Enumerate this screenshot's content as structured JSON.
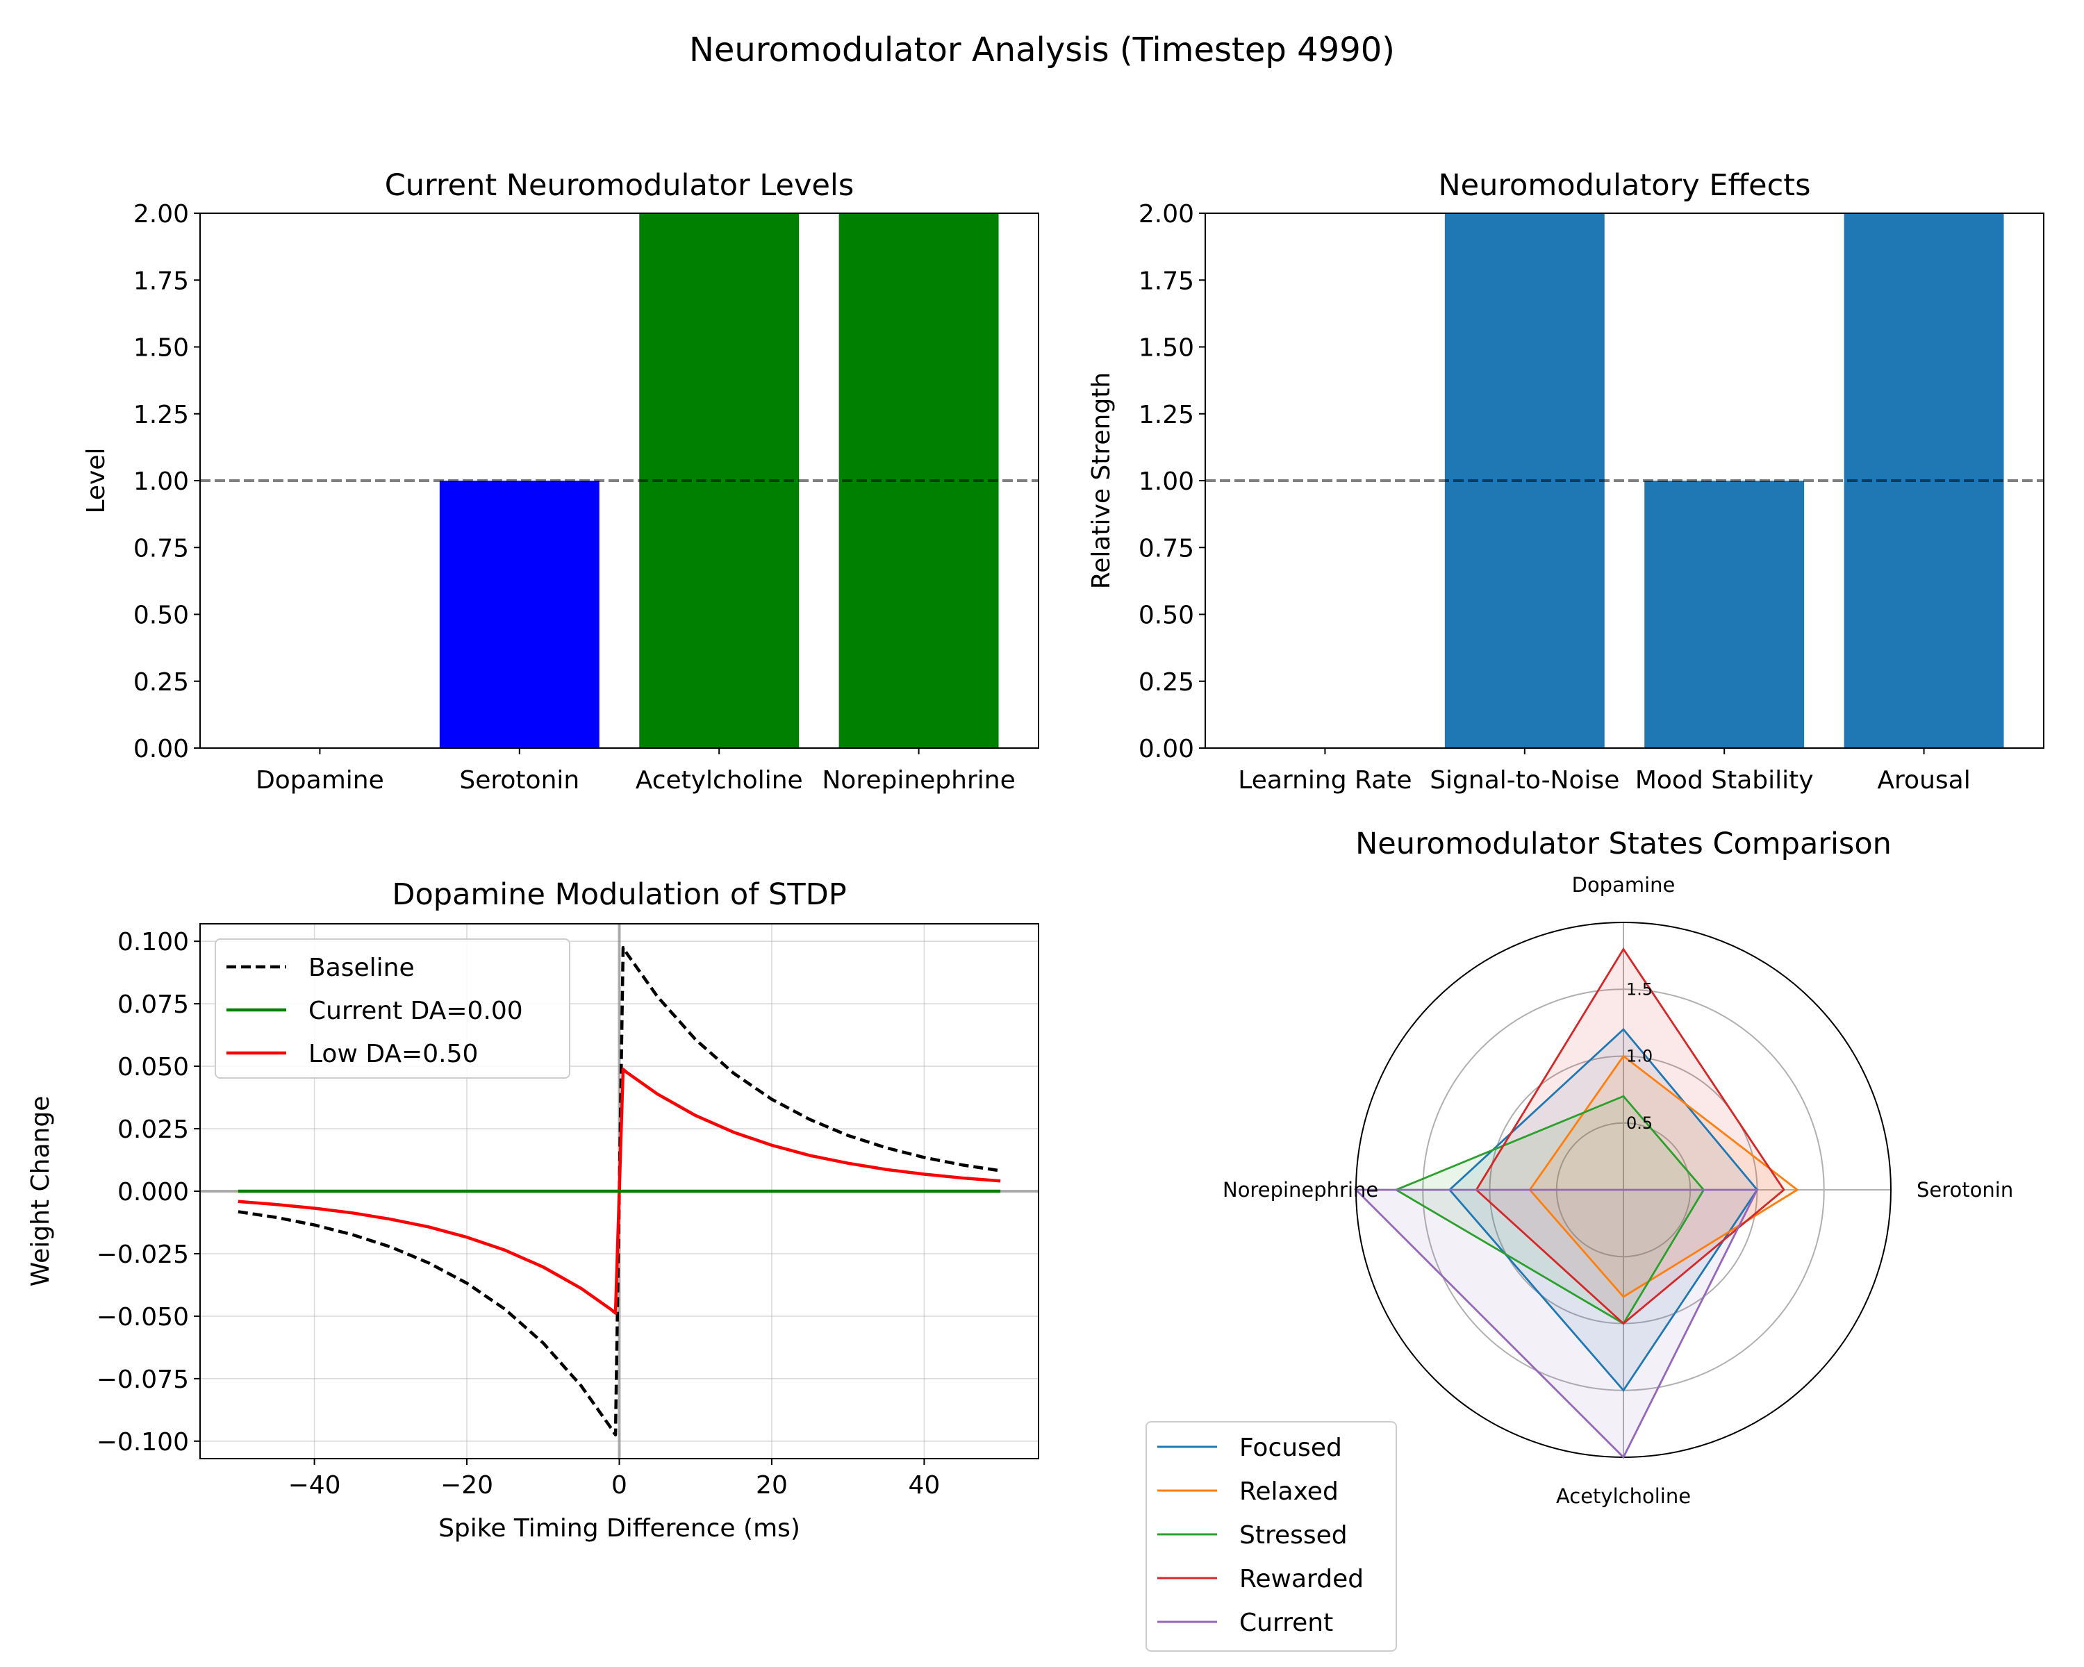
{
  "figure": {
    "suptitle": "Neuromodulator Analysis (Timestep 4990)"
  },
  "chart_data": [
    {
      "id": "levels",
      "type": "bar",
      "title": "Current Neuromodulator Levels",
      "xlabel": "",
      "ylabel": "Level",
      "categories": [
        "Dopamine",
        "Serotonin",
        "Acetylcholine",
        "Norepinephrine"
      ],
      "values": [
        0.0,
        1.0,
        2.0,
        2.0
      ],
      "bar_colors": [
        "#ff0000",
        "#0000ff",
        "#008000",
        "#008000"
      ],
      "ylim": [
        0,
        2
      ],
      "yticks": [
        "0.00",
        "0.25",
        "0.50",
        "0.75",
        "1.00",
        "1.25",
        "1.50",
        "1.75",
        "2.00"
      ],
      "reference_line": {
        "y": 1.0,
        "color": "#7f7f7f",
        "style": "dashed"
      },
      "grid": false
    },
    {
      "id": "effects",
      "type": "bar",
      "title": "Neuromodulatory Effects",
      "xlabel": "",
      "ylabel": "Relative Strength",
      "categories": [
        "Learning Rate",
        "Signal-to-Noise",
        "Mood Stability",
        "Arousal"
      ],
      "values": [
        0.0,
        2.0,
        1.0,
        2.0
      ],
      "bar_colors": [
        "#1f77b4",
        "#1f77b4",
        "#1f77b4",
        "#1f77b4"
      ],
      "ylim": [
        0,
        2
      ],
      "yticks": [
        "0.00",
        "0.25",
        "0.50",
        "0.75",
        "1.00",
        "1.25",
        "1.50",
        "1.75",
        "2.00"
      ],
      "reference_line": {
        "y": 1.0,
        "color": "#7f7f7f",
        "style": "dashed"
      },
      "grid": false
    },
    {
      "id": "stdp",
      "type": "line",
      "title": "Dopamine Modulation of STDP",
      "xlabel": "Spike Timing Difference (ms)",
      "ylabel": "Weight Change",
      "xlim": [
        -55,
        55
      ],
      "ylim": [
        -0.107,
        0.107
      ],
      "xticks": [
        -40,
        -20,
        0,
        20,
        40
      ],
      "xtick_labels": [
        "−40",
        "−20",
        "0",
        "20",
        "40"
      ],
      "yticks": [
        -0.1,
        -0.075,
        -0.05,
        -0.025,
        0,
        0.025,
        0.05,
        0.075,
        0.1
      ],
      "ytick_labels": [
        "−0.100",
        "−0.075",
        "−0.050",
        "−0.025",
        "0.000",
        "0.025",
        "0.050",
        "0.075",
        "0.100"
      ],
      "grid": true,
      "legend_position": "upper-left",
      "series": [
        {
          "name": "Baseline",
          "color": "#000000",
          "style": "dashed",
          "x": [
            -50,
            -45,
            -40,
            -35,
            -30,
            -25,
            -20,
            -15,
            -10,
            -5,
            -1,
            -0.5,
            0.5,
            1,
            5,
            10,
            15,
            20,
            25,
            30,
            35,
            40,
            45,
            50
          ],
          "y": [
            -0.0082,
            -0.0105,
            -0.0135,
            -0.0174,
            -0.0223,
            -0.0287,
            -0.0368,
            -0.0472,
            -0.0607,
            -0.0779,
            -0.0951,
            -0.0975,
            0.0975,
            0.0951,
            0.0779,
            0.0607,
            0.0472,
            0.0368,
            0.0287,
            0.0223,
            0.0174,
            0.0135,
            0.0105,
            0.0082
          ]
        },
        {
          "name": "Current DA=0.00",
          "color": "#008000",
          "style": "solid",
          "x": [
            -50,
            50
          ],
          "y": [
            0,
            0
          ]
        },
        {
          "name": "Low DA=0.50",
          "color": "#ff0000",
          "style": "solid",
          "x": [
            -50,
            -45,
            -40,
            -35,
            -30,
            -25,
            -20,
            -15,
            -10,
            -5,
            -1,
            -0.5,
            0.5,
            1,
            5,
            10,
            15,
            20,
            25,
            30,
            35,
            40,
            45,
            50
          ],
          "y": [
            -0.0041,
            -0.0053,
            -0.0068,
            -0.0087,
            -0.0112,
            -0.0143,
            -0.0184,
            -0.0236,
            -0.0303,
            -0.0389,
            -0.0475,
            -0.0488,
            0.0488,
            0.0475,
            0.0389,
            0.0303,
            0.0236,
            0.0184,
            0.0143,
            0.0112,
            0.0087,
            0.0068,
            0.0053,
            0.0041
          ]
        }
      ]
    },
    {
      "id": "radar",
      "type": "radar",
      "title": "Neuromodulator States Comparison",
      "axes": [
        "Dopamine",
        "Serotonin",
        "Acetylcholine",
        "Norepinephrine"
      ],
      "rmax": 2.0,
      "rings": [
        0.5,
        1.0,
        1.5
      ],
      "ring_labels": [
        "0.5",
        "1.0",
        "1.5"
      ],
      "legend_position": "lower-left",
      "series": [
        {
          "name": "Focused",
          "color": "#1f77b4",
          "values": [
            1.2,
            1.0,
            1.5,
            1.3
          ]
        },
        {
          "name": "Relaxed",
          "color": "#ff7f0e",
          "values": [
            1.0,
            1.3,
            0.8,
            0.7
          ]
        },
        {
          "name": "Stressed",
          "color": "#2ca02c",
          "values": [
            0.7,
            0.6,
            1.0,
            1.7
          ]
        },
        {
          "name": "Rewarded",
          "color": "#d62728",
          "values": [
            1.8,
            1.2,
            1.0,
            1.1
          ]
        },
        {
          "name": "Current",
          "color": "#9467bd",
          "values": [
            0.0,
            1.0,
            2.0,
            2.0
          ]
        }
      ]
    }
  ]
}
